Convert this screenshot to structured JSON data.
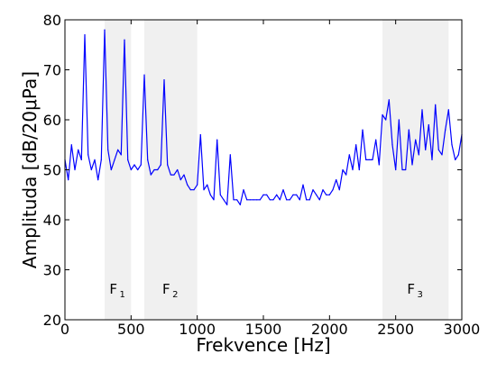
{
  "chart_data": {
    "type": "line",
    "title": "",
    "xlabel": "Frekvence [Hz]",
    "ylabel": "Amplituda [dB/20μPa]",
    "xlim": [
      0,
      3000
    ],
    "ylim": [
      20,
      80
    ],
    "xticks": [
      0,
      500,
      1000,
      1500,
      2000,
      2500,
      3000
    ],
    "yticks": [
      20,
      30,
      40,
      50,
      60,
      70,
      80
    ],
    "grid": false,
    "series_color": "#0000ff",
    "band_color": "#f0f0f0",
    "bands": [
      {
        "label": "F",
        "subscript": "1",
        "x_from": 300,
        "x_to": 500
      },
      {
        "label": "F",
        "subscript": "2",
        "x_from": 600,
        "x_to": 1000
      },
      {
        "label": "F",
        "subscript": "3",
        "x_from": 2400,
        "x_to": 2900
      }
    ],
    "series": [
      {
        "x": [
          0,
          25,
          50,
          75,
          100,
          125,
          150,
          175,
          200,
          225,
          250,
          275,
          300,
          325,
          350,
          375,
          400,
          425,
          450,
          475,
          500,
          525,
          550,
          575,
          600,
          625,
          650,
          675,
          700,
          725,
          750,
          775,
          800,
          825,
          850,
          875,
          900,
          925,
          950,
          975,
          1000,
          1025,
          1050,
          1075,
          1100,
          1125,
          1150,
          1175,
          1200,
          1225,
          1250,
          1275,
          1300,
          1325,
          1350,
          1375,
          1400,
          1425,
          1450,
          1475,
          1500,
          1525,
          1550,
          1575,
          1600,
          1625,
          1650,
          1675,
          1700,
          1725,
          1750,
          1775,
          1800,
          1825,
          1850,
          1875,
          1900,
          1925,
          1950,
          1975,
          2000,
          2025,
          2050,
          2075,
          2100,
          2125,
          2150,
          2175,
          2200,
          2225,
          2250,
          2275,
          2300,
          2325,
          2350,
          2375,
          2400,
          2425,
          2450,
          2475,
          2500,
          2525,
          2550,
          2575,
          2600,
          2625,
          2650,
          2675,
          2700,
          2725,
          2750,
          2775,
          2800,
          2825,
          2850,
          2875,
          2900,
          2925,
          2950,
          2975,
          3000
        ],
        "y": [
          52,
          48,
          55,
          50,
          54,
          52,
          77,
          53,
          50,
          52,
          48,
          52,
          78,
          54,
          50,
          52,
          54,
          53,
          76,
          52,
          50,
          51,
          50,
          51,
          69,
          52,
          49,
          50,
          50,
          51,
          68,
          51,
          49,
          49,
          50,
          48,
          49,
          47,
          46,
          46,
          47,
          57,
          46,
          47,
          45,
          44,
          56,
          45,
          44,
          43,
          53,
          44,
          44,
          43,
          46,
          44,
          44,
          44,
          44,
          44,
          45,
          45,
          44,
          44,
          45,
          44,
          46,
          44,
          44,
          45,
          45,
          44,
          47,
          44,
          44,
          46,
          45,
          44,
          46,
          45,
          45,
          46,
          48,
          46,
          50,
          49,
          53,
          50,
          55,
          50,
          58,
          52,
          52,
          52,
          56,
          51,
          61,
          60,
          64,
          55,
          50,
          60,
          50,
          50,
          58,
          51,
          56,
          53,
          62,
          54,
          59,
          52,
          63,
          54,
          53,
          58,
          62,
          55,
          52,
          53,
          57
        ]
      }
    ]
  }
}
